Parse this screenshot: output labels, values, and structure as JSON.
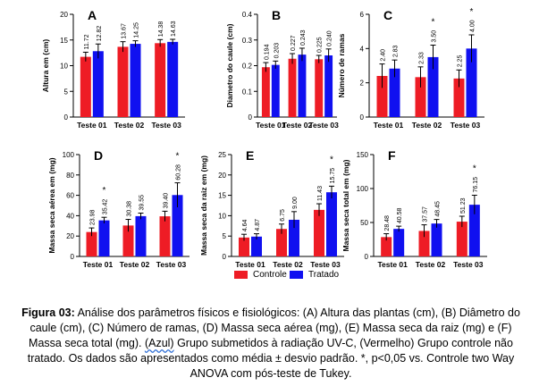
{
  "colors": {
    "control": "#ee1c25",
    "treated": "#1010f0"
  },
  "groups": [
    "Teste 01",
    "Teste 02",
    "Teste 03"
  ],
  "legend": {
    "control": "Controle",
    "treated": "Tratado"
  },
  "caption": {
    "label": "Figura 03:",
    "text_before_uv": " Análise dos parâmetros físicos e fisiológicos: (A) Altura das plantas (cm), (B) Diâmetro do caule (cm), (C) Número de ramas, (D) Massa seca aérea (mg), (E) Massa seca da raiz (mg) e (F) Massa seca total (mg). ",
    "uv_word": "(Azul)",
    "text_after_uv": " Grupo submetidos à radiação UV-C, (Vermelho) Grupo controle não tratado. Os dados são apresentados como média ± desvio padrão. *, p<0,05 vs. Controle two Way ANOVA com pós-teste de Tukey."
  },
  "chart_data": [
    {
      "type": "bar",
      "panel": "A",
      "ylabel": "Altura em (cm)",
      "ylim": [
        0,
        20
      ],
      "yticks": [
        0,
        5,
        10,
        15,
        20
      ],
      "categories": [
        "Teste 01",
        "Teste 02",
        "Teste 03"
      ],
      "series": [
        {
          "name": "Controle",
          "values": [
            11.72,
            13.67,
            14.38
          ],
          "labels": [
            "11.72",
            "13.67",
            "14.38"
          ],
          "errors": [
            0.9,
            1.0,
            0.7
          ],
          "significant": [
            false,
            false,
            false
          ]
        },
        {
          "name": "Tratado",
          "values": [
            12.82,
            14.25,
            14.63
          ],
          "labels": [
            "12.82",
            "14.25",
            "14.63"
          ],
          "errors": [
            1.4,
            0.6,
            0.5
          ],
          "significant": [
            false,
            false,
            false
          ]
        }
      ]
    },
    {
      "type": "bar",
      "panel": "B",
      "ylabel": "Diametro do caule (cm)",
      "ylim": [
        0,
        0.4
      ],
      "yticks": [
        0,
        0.1,
        0.2,
        0.3,
        0.4
      ],
      "categories": [
        "Teste 01",
        "Teste 02",
        "Teste 03"
      ],
      "series": [
        {
          "name": "Controle",
          "values": [
            0.194,
            0.227,
            0.225
          ],
          "labels": [
            "0.194",
            "0.227",
            "0.225"
          ],
          "errors": [
            0.018,
            0.02,
            0.015
          ],
          "significant": [
            false,
            false,
            false
          ]
        },
        {
          "name": "Tratado",
          "values": [
            0.203,
            0.243,
            0.24
          ],
          "labels": [
            "0.203",
            "0.243",
            "0.240"
          ],
          "errors": [
            0.015,
            0.025,
            0.025
          ],
          "significant": [
            false,
            false,
            false
          ]
        }
      ]
    },
    {
      "type": "bar",
      "panel": "C",
      "ylabel": "Número de ramas",
      "ylim": [
        0,
        6
      ],
      "yticks": [
        0,
        2,
        4,
        6
      ],
      "categories": [
        "Teste 01",
        "Teste 02",
        "Teste 03"
      ],
      "series": [
        {
          "name": "Controle",
          "values": [
            2.4,
            2.33,
            2.25
          ],
          "labels": [
            "2.40",
            "2.33",
            "2.25"
          ],
          "errors": [
            0.7,
            0.6,
            0.5
          ],
          "significant": [
            false,
            false,
            false
          ]
        },
        {
          "name": "Tratado",
          "values": [
            2.83,
            3.5,
            4.0
          ],
          "labels": [
            "2.83",
            "3.50",
            "4.00"
          ],
          "errors": [
            0.5,
            0.7,
            0.8
          ],
          "significant": [
            false,
            true,
            true
          ]
        }
      ]
    },
    {
      "type": "bar",
      "panel": "D",
      "ylabel": "Massa seca aérea em (mg)",
      "ylim": [
        0,
        100
      ],
      "yticks": [
        0,
        20,
        40,
        60,
        80,
        100
      ],
      "categories": [
        "Teste 01",
        "Teste 02",
        "Teste 03"
      ],
      "series": [
        {
          "name": "Controle",
          "values": [
            23.98,
            30.38,
            39.4
          ],
          "labels": [
            "23.98",
            "30.38",
            "39.40"
          ],
          "errors": [
            4,
            6,
            5
          ],
          "significant": [
            false,
            false,
            false
          ]
        },
        {
          "name": "Tratado",
          "values": [
            35.42,
            39.55,
            60.28
          ],
          "labels": [
            "35.42",
            "39.55",
            "60.28"
          ],
          "errors": [
            3,
            3,
            12
          ],
          "significant": [
            true,
            false,
            true
          ]
        }
      ]
    },
    {
      "type": "bar",
      "panel": "E",
      "ylabel": "Massa seca da raiz em (mg)",
      "ylim": [
        0,
        25
      ],
      "yticks": [
        0,
        5,
        10,
        15,
        20,
        25
      ],
      "categories": [
        "Teste 01",
        "Teste 02",
        "Teste 03"
      ],
      "series": [
        {
          "name": "Controle",
          "values": [
            4.64,
            6.75,
            11.43
          ],
          "labels": [
            "4.64",
            "6.75",
            "11.43"
          ],
          "errors": [
            0.8,
            1.2,
            1.5
          ],
          "significant": [
            false,
            false,
            false
          ]
        },
        {
          "name": "Tratado",
          "values": [
            4.87,
            9.0,
            15.75
          ],
          "labels": [
            "4.87",
            "9.00",
            "15.75"
          ],
          "errors": [
            0.7,
            2.0,
            1.5
          ],
          "significant": [
            false,
            false,
            true
          ]
        }
      ]
    },
    {
      "type": "bar",
      "panel": "F",
      "ylabel": "Massa seca total em (mg)",
      "ylim": [
        0,
        150
      ],
      "yticks": [
        0,
        50,
        100,
        150
      ],
      "categories": [
        "Teste 01",
        "Teste 02",
        "Teste 03"
      ],
      "series": [
        {
          "name": "Controle",
          "values": [
            28.48,
            37.57,
            51.23
          ],
          "labels": [
            "28.48",
            "37.57",
            "51.23"
          ],
          "errors": [
            5,
            9,
            8
          ],
          "significant": [
            false,
            false,
            false
          ]
        },
        {
          "name": "Tratado",
          "values": [
            40.58,
            48.45,
            76.15
          ],
          "labels": [
            "40.58",
            "48.45",
            "76.15"
          ],
          "errors": [
            4,
            6,
            14
          ],
          "significant": [
            false,
            false,
            true
          ]
        }
      ]
    }
  ]
}
